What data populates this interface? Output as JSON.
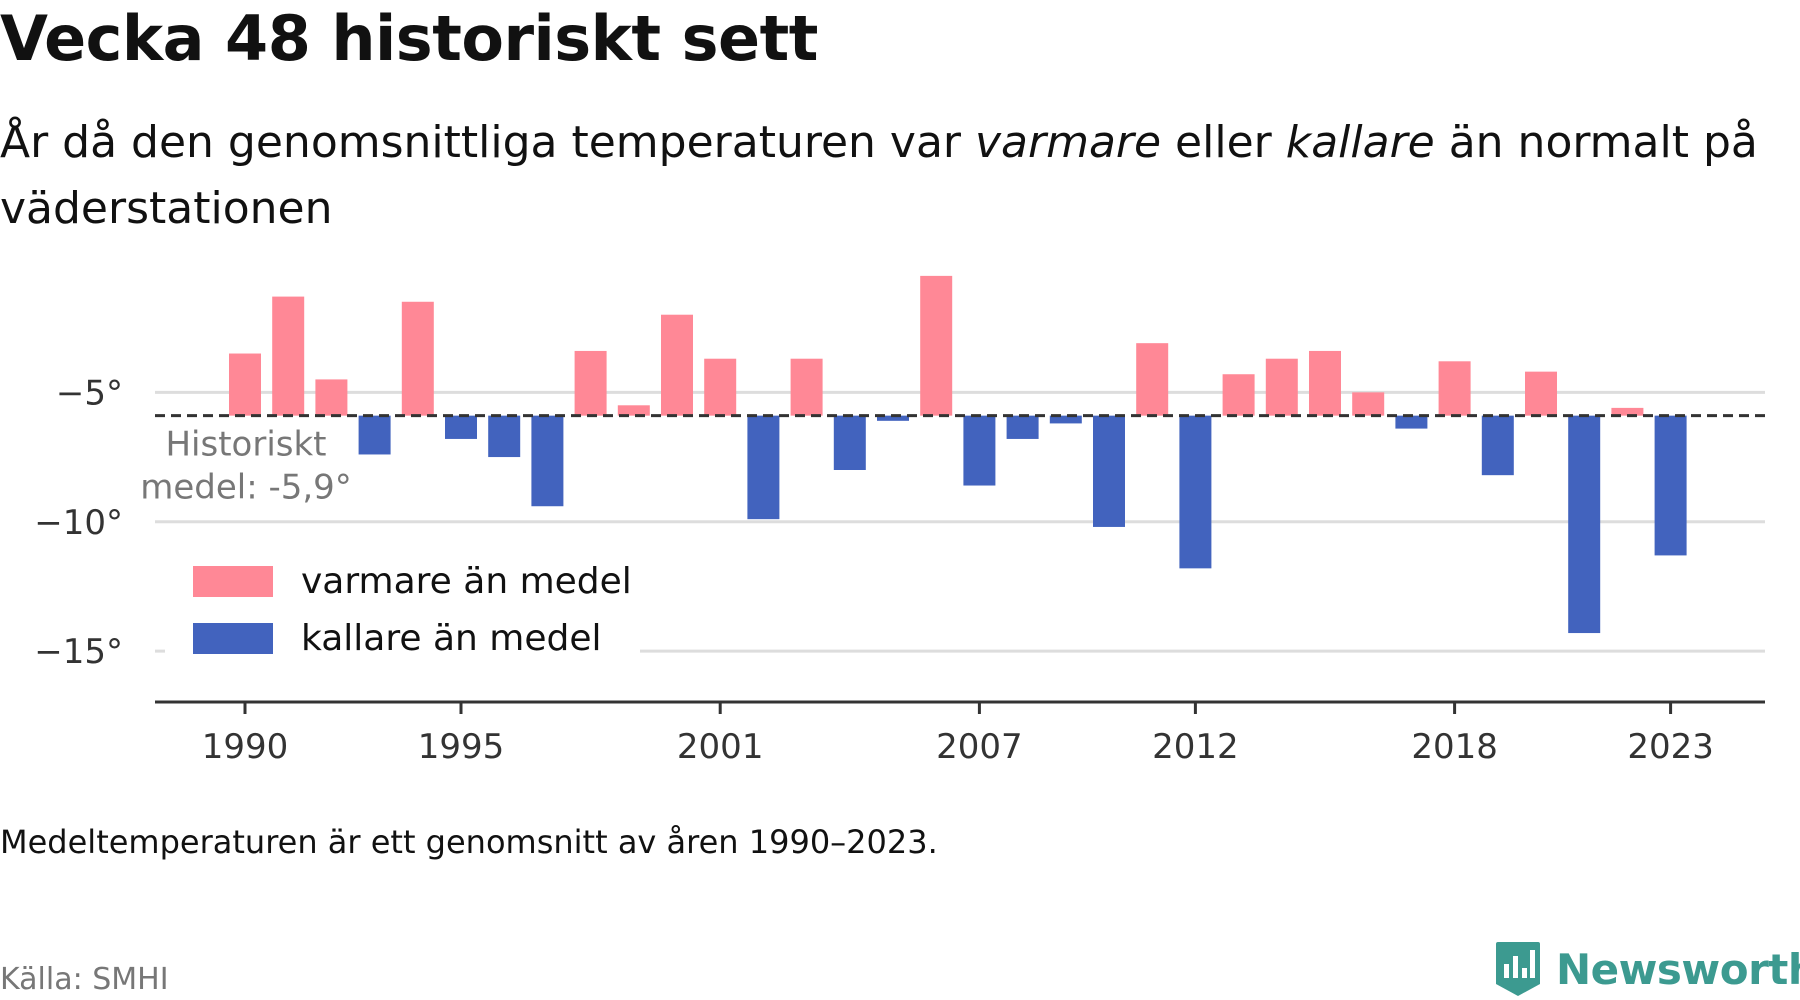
{
  "title": "Vecka 48 historiskt sett",
  "subtitle": {
    "part1": "År då den genomsnittliga temperaturen var ",
    "warm_word": "varmare",
    "part2": " eller ",
    "cold_word": "kallare",
    "part3": " än normalt på väderstationen"
  },
  "note": "Medeltemperaturen är ett genomsnitt av åren 1990–2023.",
  "source": "Källa: SMHI",
  "brand": "Newsworthy",
  "colors": {
    "warm": "#ff8896",
    "cold": "#4263be",
    "grid": "#dddddd",
    "axis": "#333333",
    "mean_line": "#333333",
    "brand": "#3c9a90"
  },
  "chart_data": {
    "type": "bar",
    "x": [
      1990,
      1991,
      1992,
      1993,
      1994,
      1995,
      1996,
      1997,
      1998,
      1999,
      2000,
      2001,
      2002,
      2003,
      2004,
      2005,
      2006,
      2007,
      2008,
      2009,
      2010,
      2011,
      2012,
      2013,
      2014,
      2015,
      2016,
      2017,
      2018,
      2019,
      2020,
      2021,
      2022,
      2023
    ],
    "values": [
      -3.5,
      -1.3,
      -4.5,
      -7.4,
      -1.5,
      -6.8,
      -7.5,
      -9.4,
      -3.4,
      -5.5,
      -2.0,
      -3.7,
      -9.9,
      -3.7,
      -8.0,
      -6.1,
      -0.5,
      -8.6,
      -6.8,
      -6.2,
      -10.2,
      -3.1,
      -11.8,
      -4.3,
      -3.7,
      -3.4,
      -5.0,
      -6.4,
      -3.8,
      -8.2,
      -4.2,
      -14.3,
      -5.6,
      -11.3
    ],
    "xticks": [
      1990,
      1995,
      2001,
      2007,
      2012,
      2018,
      2023
    ],
    "xtick_labels": [
      "1990",
      "1995",
      "2001",
      "2007",
      "2012",
      "2018",
      "2023"
    ],
    "yticks": [
      -5,
      -10,
      -15
    ],
    "ytick_labels": [
      "−5°",
      "−10°",
      "−15°"
    ],
    "ylim": [
      -16.5,
      0.5
    ],
    "mean": -5.9,
    "mean_label_line1": "Historiskt",
    "mean_label_line2": "medel: -5,9°",
    "legend": [
      {
        "label": "varmare än medel",
        "color": "#ff8896"
      },
      {
        "label": "kallare än medel",
        "color": "#4263be"
      }
    ],
    "legend_placement": "bottom-left",
    "grid": true
  }
}
